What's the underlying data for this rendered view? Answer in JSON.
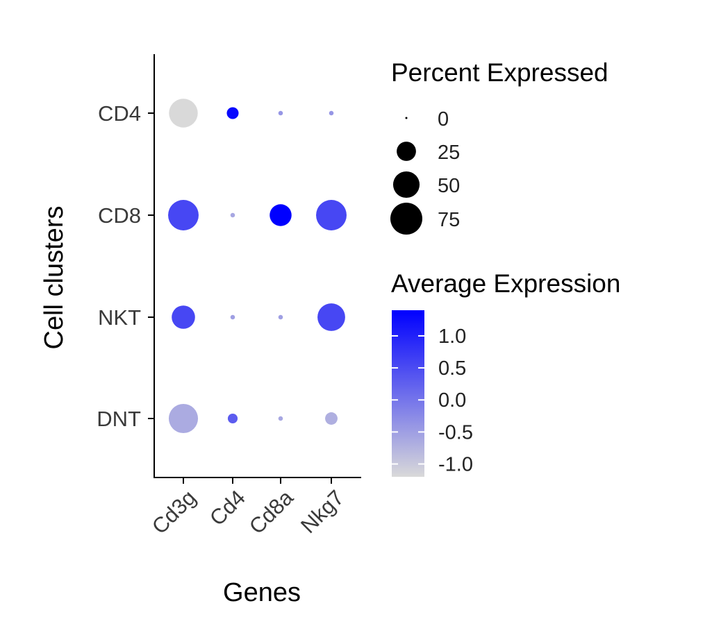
{
  "chart_data": {
    "type": "dotplot",
    "xlabel": "Genes",
    "ylabel": "Cell clusters",
    "genes": [
      "Cd3g",
      "Cd4",
      "Cd8a",
      "Nkg7"
    ],
    "clusters": [
      "CD4",
      "CD8",
      "NKT",
      "DNT"
    ],
    "points": [
      {
        "cluster": "CD4",
        "gene": "Cd3g",
        "pct_expressed": 60,
        "avg_expression": -1.2
      },
      {
        "cluster": "CD4",
        "gene": "Cd4",
        "pct_expressed": 8,
        "avg_expression": 1.3
      },
      {
        "cluster": "CD4",
        "gene": "Cd8a",
        "pct_expressed": 0.5,
        "avg_expression": -0.4
      },
      {
        "cluster": "CD4",
        "gene": "Nkg7",
        "pct_expressed": 0.5,
        "avg_expression": -0.4
      },
      {
        "cluster": "CD8",
        "gene": "Cd3g",
        "pct_expressed": 68,
        "avg_expression": 0.55
      },
      {
        "cluster": "CD8",
        "gene": "Cd4",
        "pct_expressed": 0.5,
        "avg_expression": -0.6
      },
      {
        "cluster": "CD8",
        "gene": "Cd8a",
        "pct_expressed": 33,
        "avg_expression": 1.4
      },
      {
        "cluster": "CD8",
        "gene": "Nkg7",
        "pct_expressed": 68,
        "avg_expression": 0.55
      },
      {
        "cluster": "NKT",
        "gene": "Cd3g",
        "pct_expressed": 38,
        "avg_expression": 0.55
      },
      {
        "cluster": "NKT",
        "gene": "Cd4",
        "pct_expressed": 0.5,
        "avg_expression": -0.5
      },
      {
        "cluster": "NKT",
        "gene": "Cd8a",
        "pct_expressed": 0.5,
        "avg_expression": -0.5
      },
      {
        "cluster": "NKT",
        "gene": "Nkg7",
        "pct_expressed": 55,
        "avg_expression": 0.55
      },
      {
        "cluster": "DNT",
        "gene": "Cd3g",
        "pct_expressed": 62,
        "avg_expression": -0.65
      },
      {
        "cluster": "DNT",
        "gene": "Cd4",
        "pct_expressed": 5,
        "avg_expression": 0.3
      },
      {
        "cluster": "DNT",
        "gene": "Cd8a",
        "pct_expressed": 0.5,
        "avg_expression": -0.6
      },
      {
        "cluster": "DNT",
        "gene": "Nkg7",
        "pct_expressed": 9,
        "avg_expression": -0.7
      }
    ],
    "size_legend": {
      "title": "Percent Expressed",
      "breaks": [
        0,
        25,
        50,
        75
      ],
      "labels": [
        "0",
        "25",
        "50",
        "75"
      ]
    },
    "color_legend": {
      "title": "Average Expression",
      "range": [
        -1.2,
        1.4
      ],
      "low_color": "#d9d9d9",
      "high_color": "#0000ff",
      "breaks": [
        1.0,
        0.5,
        0.0,
        -0.5,
        -1.0
      ],
      "labels": [
        "1.0",
        "0.5",
        "0.0",
        "-0.5",
        "-1.0"
      ]
    }
  }
}
